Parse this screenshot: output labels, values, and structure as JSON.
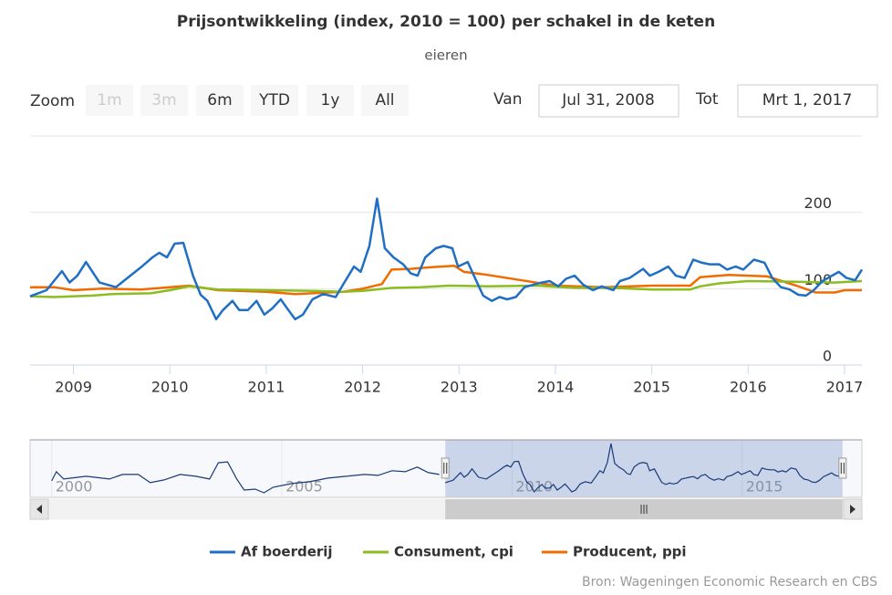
{
  "chart_data": {
    "type": "line",
    "title": "Prijsontwikkeling (index, 2010 = 100) per schakel in de keten",
    "subtitle": "eieren",
    "xlim": [
      2008.55,
      2017.18
    ],
    "xticks": [
      2009,
      2010,
      2011,
      2012,
      2013,
      2014,
      2015,
      2016,
      2017
    ],
    "ylim": [
      0,
      300
    ],
    "yticks": [
      0,
      100,
      200
    ],
    "grid": true,
    "legend": "bottom",
    "series": [
      {
        "name": "Af boerderij",
        "color": "#1f6fc5",
        "x": [
          2008.55,
          2008.72,
          2008.88,
          2008.96,
          2009.04,
          2009.13,
          2009.27,
          2009.44,
          2009.56,
          2009.7,
          2009.82,
          2009.89,
          2009.97,
          2010.05,
          2010.14,
          2010.24,
          2010.32,
          2010.39,
          2010.48,
          2010.55,
          2010.65,
          2010.72,
          2010.81,
          2010.9,
          2010.98,
          2011.06,
          2011.15,
          2011.23,
          2011.3,
          2011.38,
          2011.48,
          2011.59,
          2011.72,
          2011.81,
          2011.91,
          2011.98,
          2012.07,
          2012.15,
          2012.23,
          2012.32,
          2012.42,
          2012.5,
          2012.57,
          2012.65,
          2012.76,
          2012.84,
          2012.93,
          2012.99,
          2013.09,
          2013.17,
          2013.25,
          2013.34,
          2013.42,
          2013.5,
          2013.59,
          2013.68,
          2013.77,
          2013.86,
          2013.94,
          2014.03,
          2014.11,
          2014.2,
          2014.29,
          2014.39,
          2014.48,
          2014.6,
          2014.67,
          2014.77,
          2014.91,
          2014.98,
          2015.07,
          2015.17,
          2015.25,
          2015.34,
          2015.43,
          2015.52,
          2015.6,
          2015.7,
          2015.78,
          2015.87,
          2015.95,
          2016.06,
          2016.17,
          2016.25,
          2016.34,
          2016.43,
          2016.52,
          2016.6,
          2016.68,
          2016.77,
          2016.87,
          2016.94,
          2017.02,
          2017.11,
          2017.18
        ],
        "values": [
          90,
          98,
          123,
          108,
          117,
          135,
          108,
          102,
          114,
          128,
          141,
          147,
          141,
          159,
          160,
          117,
          92,
          84,
          60,
          72,
          84,
          72,
          72,
          84,
          66,
          74,
          86,
          72,
          60,
          66,
          86,
          93,
          89,
          108,
          129,
          122,
          156,
          218,
          153,
          141,
          132,
          120,
          117,
          141,
          153,
          156,
          153,
          129,
          135,
          113,
          91,
          84,
          89,
          86,
          89,
          102,
          105,
          108,
          110,
          103,
          113,
          117,
          105,
          98,
          103,
          98,
          110,
          114,
          126,
          117,
          122,
          129,
          117,
          114,
          138,
          134,
          132,
          132,
          125,
          129,
          125,
          138,
          134,
          114,
          102,
          99,
          92,
          91,
          98,
          110,
          117,
          122,
          114,
          111,
          125
        ]
      },
      {
        "name": "Consument, cpi",
        "color": "#8bbd22",
        "x": [
          2008.55,
          2008.8,
          2009.2,
          2009.4,
          2009.8,
          2010.0,
          2010.2,
          2010.5,
          2011.0,
          2011.5,
          2011.8,
          2012.0,
          2012.3,
          2012.6,
          2012.9,
          2013.3,
          2013.8,
          2014.2,
          2014.6,
          2015.0,
          2015.4,
          2015.5,
          2015.7,
          2016.0,
          2016.5,
          2016.9,
          2017.18
        ],
        "values": [
          90,
          89,
          91,
          93,
          94,
          98,
          103,
          99,
          98,
          97,
          96,
          97,
          101,
          102,
          104,
          103,
          104,
          101,
          101,
          99,
          99,
          103,
          107,
          110,
          109,
          108,
          110
        ]
      },
      {
        "name": "Producent, ppi",
        "color": "#f06c00",
        "x": [
          2008.55,
          2008.8,
          2009.0,
          2009.3,
          2009.7,
          2010.0,
          2010.2,
          2010.5,
          2011.0,
          2011.3,
          2011.8,
          2012.0,
          2012.2,
          2012.3,
          2012.5,
          2012.7,
          2012.95,
          2013.05,
          2013.3,
          2013.6,
          2014.0,
          2014.5,
          2015.0,
          2015.4,
          2015.5,
          2015.8,
          2016.2,
          2016.5,
          2016.7,
          2016.9,
          2017.0,
          2017.18
        ],
        "values": [
          102,
          102,
          98,
          100,
          99,
          102,
          104,
          98,
          96,
          93,
          96,
          100,
          106,
          125,
          126,
          128,
          130,
          122,
          118,
          112,
          104,
          102,
          104,
          104,
          115,
          118,
          116,
          104,
          95,
          95,
          98,
          98
        ]
      }
    ],
    "navigator": {
      "xlim": [
        1999.53,
        2017.6
      ],
      "ylim": [
        42,
        230
      ],
      "xticks": [
        2000,
        2005,
        2010,
        2015
      ],
      "color": "#1a3a7a",
      "x": [
        2000.0,
        2000.1,
        2000.26,
        2000.75,
        2001.25,
        2001.54,
        2001.88,
        2002.14,
        2002.44,
        2002.79,
        2003.13,
        2003.43,
        2003.62,
        2003.82,
        2004.02,
        2004.18,
        2004.42,
        2004.61,
        2004.81,
        2005.21,
        2005.6,
        2006.0,
        2006.4,
        2006.79,
        2007.09,
        2007.39,
        2007.68,
        2007.94,
        2008.18,
        2008.42
      ],
      "values": [
        96,
        126,
        102,
        111,
        102,
        117,
        117,
        90,
        99,
        117,
        111,
        102,
        155,
        158,
        102,
        66,
        69,
        57,
        75,
        87,
        93,
        105,
        111,
        117,
        114,
        129,
        126,
        141,
        123,
        117
      ]
    }
  },
  "range_selector": {
    "label": "Zoom",
    "buttons": [
      {
        "text": "1m",
        "enabled": false
      },
      {
        "text": "3m",
        "enabled": false
      },
      {
        "text": "6m",
        "enabled": true
      },
      {
        "text": "YTD",
        "enabled": true
      },
      {
        "text": "1y",
        "enabled": true
      },
      {
        "text": "All",
        "enabled": true
      }
    ],
    "from_label": "Van",
    "from": "Jul 31, 2008",
    "to_label": "Tot",
    "to": "Mrt 1, 2017"
  },
  "credits": "Bron: Wageningen Economic Research en CBS"
}
